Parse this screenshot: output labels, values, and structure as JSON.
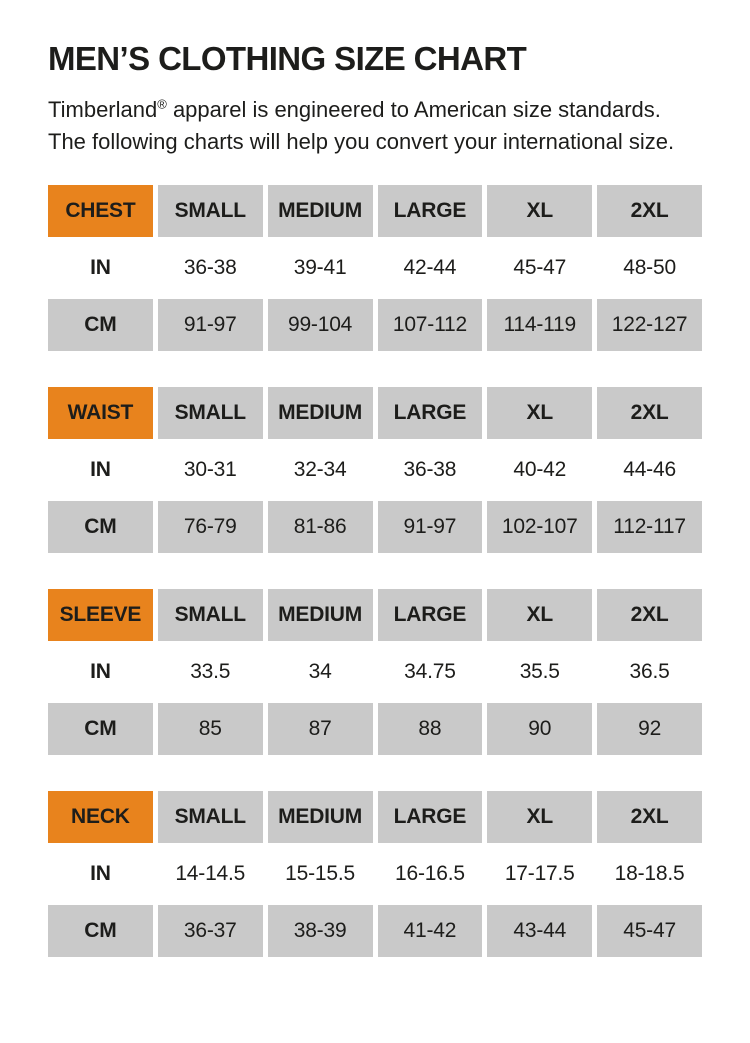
{
  "page": {
    "title": "MEN’S CLOTHING SIZE CHART"
  },
  "intro": {
    "brand": "Timberland",
    "registered_mark": "®",
    "text": " apparel is engineered to American size standards. The following charts will help you convert your international size."
  },
  "colors": {
    "accent_orange": "#e8831d",
    "cell_gray": "#c9c9c9",
    "text": "#1d1d1b",
    "background": "#ffffff"
  },
  "tables": [
    {
      "label": "CHEST",
      "columns": [
        "SMALL",
        "MEDIUM",
        "LARGE",
        "XL",
        "2XL"
      ],
      "rows": [
        {
          "label": "IN",
          "values": [
            "36-38",
            "39-41",
            "42-44",
            "45-47",
            "48-50"
          ]
        },
        {
          "label": "CM",
          "values": [
            "91-97",
            "99-104",
            "107-112",
            "114-119",
            "122-127"
          ]
        }
      ]
    },
    {
      "label": "WAIST",
      "columns": [
        "SMALL",
        "MEDIUM",
        "LARGE",
        "XL",
        "2XL"
      ],
      "rows": [
        {
          "label": "IN",
          "values": [
            "30-31",
            "32-34",
            "36-38",
            "40-42",
            "44-46"
          ]
        },
        {
          "label": "CM",
          "values": [
            "76-79",
            "81-86",
            "91-97",
            "102-107",
            "112-117"
          ]
        }
      ]
    },
    {
      "label": "SLEEVE",
      "columns": [
        "SMALL",
        "MEDIUM",
        "LARGE",
        "XL",
        "2XL"
      ],
      "rows": [
        {
          "label": "IN",
          "values": [
            "33.5",
            "34",
            "34.75",
            "35.5",
            "36.5"
          ]
        },
        {
          "label": "CM",
          "values": [
            "85",
            "87",
            "88",
            "90",
            "92"
          ]
        }
      ]
    },
    {
      "label": "NECK",
      "columns": [
        "SMALL",
        "MEDIUM",
        "LARGE",
        "XL",
        "2XL"
      ],
      "rows": [
        {
          "label": "IN",
          "values": [
            "14-14.5",
            "15-15.5",
            "16-16.5",
            "17-17.5",
            "18-18.5"
          ]
        },
        {
          "label": "CM",
          "values": [
            "36-37",
            "38-39",
            "41-42",
            "43-44",
            "45-47"
          ]
        }
      ]
    }
  ]
}
